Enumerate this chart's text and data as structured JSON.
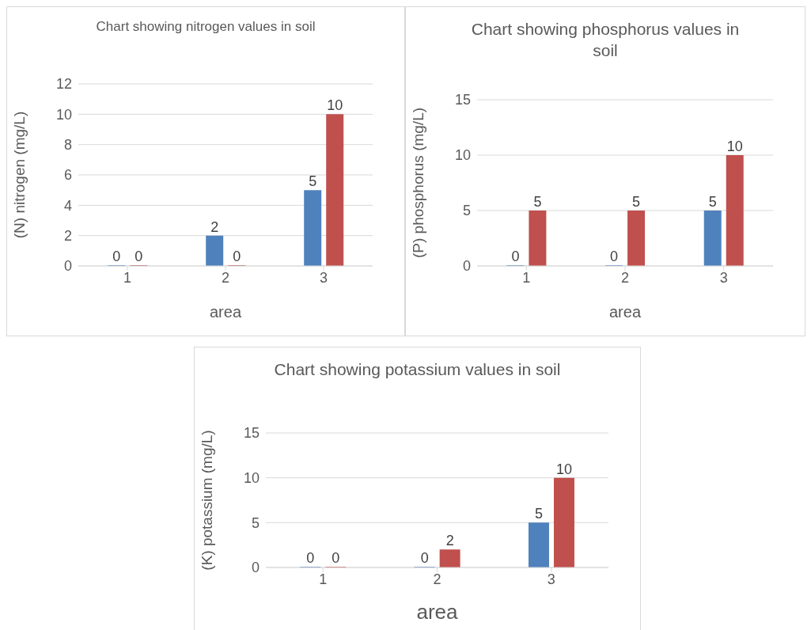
{
  "chart_data": [
    {
      "type": "bar",
      "title": "Chart showing nitrogen values in soil",
      "xlabel": "area",
      "ylabel": "(N) nitrogen (mg/L)",
      "categories": [
        "1",
        "2",
        "3"
      ],
      "series": [
        {
          "color": "#4f81bd",
          "values": [
            0,
            2,
            5
          ]
        },
        {
          "color": "#c0504d",
          "values": [
            0,
            0,
            10
          ]
        }
      ],
      "ylim": [
        0,
        12
      ],
      "yticks": [
        0,
        2,
        4,
        6,
        8,
        10,
        12
      ],
      "grid": "y",
      "data_labels": true,
      "legend": false
    },
    {
      "type": "bar",
      "title": "Chart showing phosphorus values in soil",
      "xlabel": "area",
      "ylabel": "(P) phosphorus (mg/L)",
      "categories": [
        "1",
        "2",
        "3"
      ],
      "series": [
        {
          "color": "#4f81bd",
          "values": [
            0,
            0,
            5
          ]
        },
        {
          "color": "#c0504d",
          "values": [
            5,
            5,
            10
          ]
        }
      ],
      "ylim": [
        0,
        15
      ],
      "yticks": [
        0,
        5,
        10,
        15
      ],
      "grid": "y",
      "data_labels": true,
      "legend": false
    },
    {
      "type": "bar",
      "title": "Chart showing potassium values in soil",
      "xlabel": "area",
      "ylabel": "(K) potassium (mg/L)",
      "categories": [
        "1",
        "2",
        "3"
      ],
      "series": [
        {
          "color": "#4f81bd",
          "values": [
            0,
            0,
            5
          ]
        },
        {
          "color": "#c0504d",
          "values": [
            0,
            2,
            10
          ]
        }
      ],
      "ylim": [
        0,
        15
      ],
      "yticks": [
        0,
        5,
        10,
        15
      ],
      "grid": "y",
      "data_labels": true,
      "legend": false
    }
  ]
}
